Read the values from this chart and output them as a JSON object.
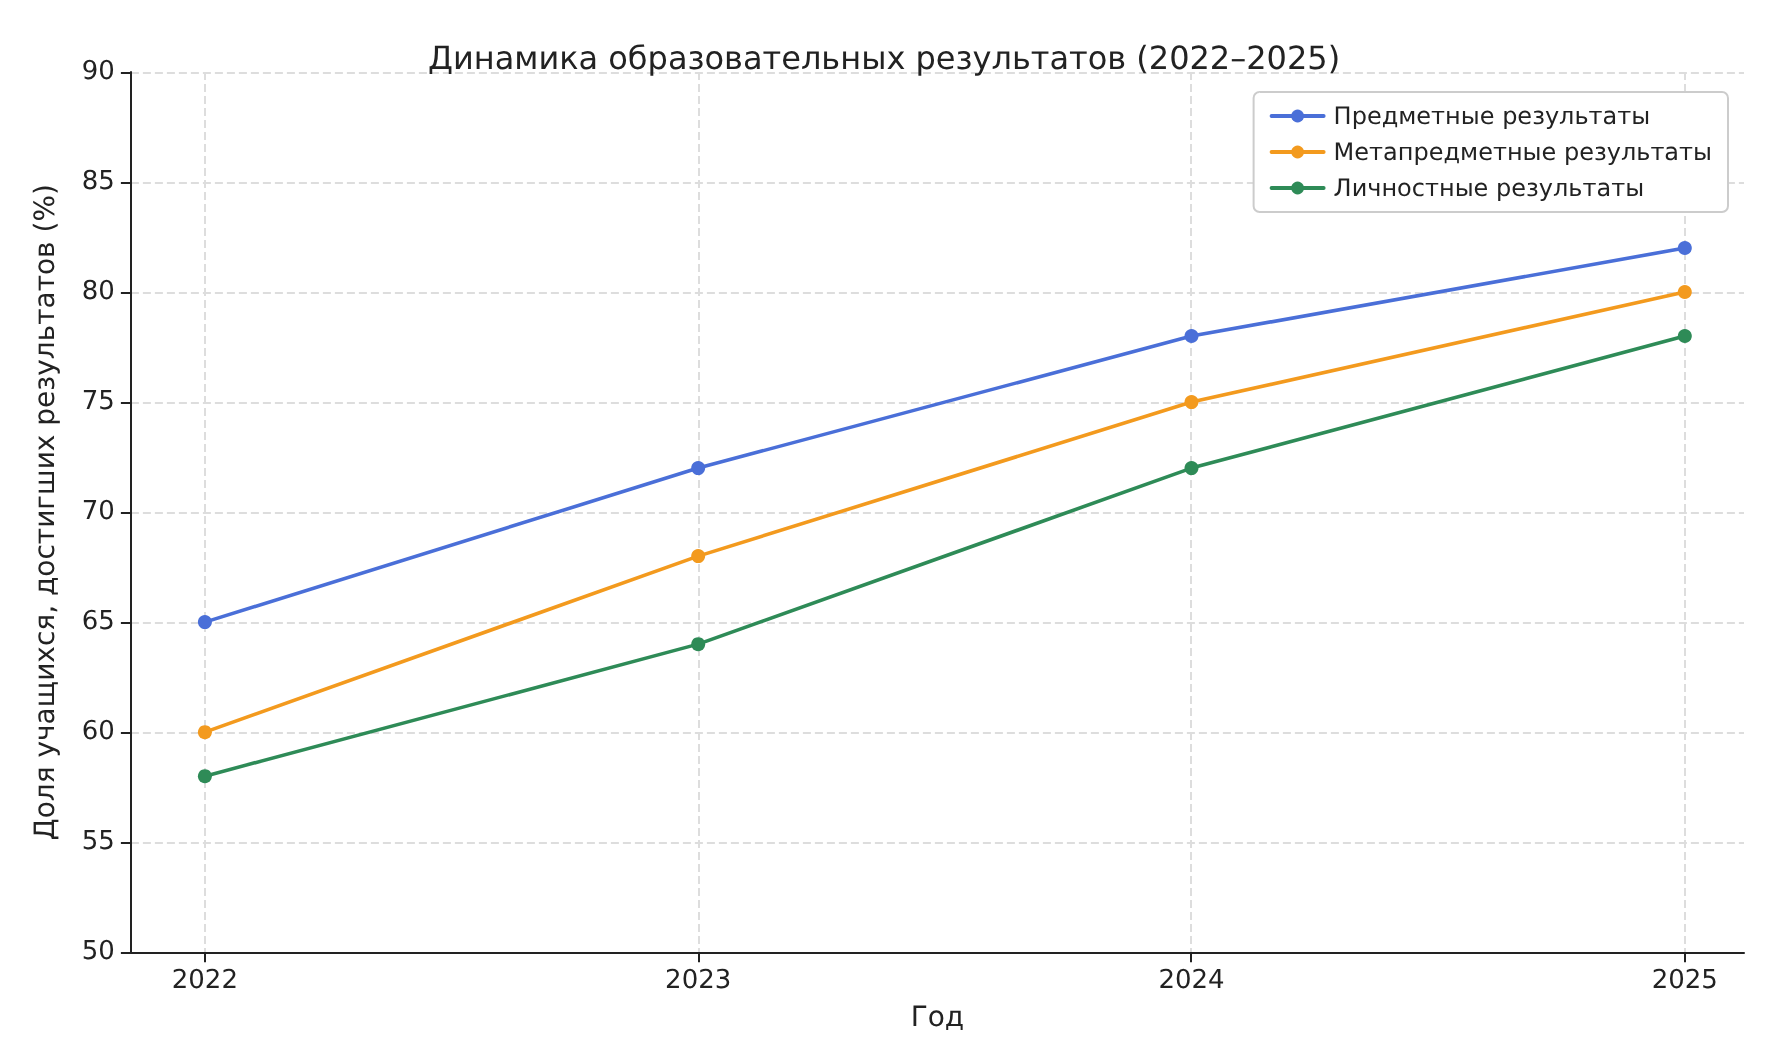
{
  "chart_data": {
    "type": "line",
    "title": "Динамика образовательных результатов (2022–2025)",
    "xlabel": "Год",
    "ylabel": "Доля учащихся, достигших результатов (%)",
    "x": [
      2022,
      2023,
      2024,
      2025
    ],
    "series": [
      {
        "name": "Предметные результаты",
        "color": "#4a6fd8",
        "values": [
          65,
          72,
          78,
          82
        ]
      },
      {
        "name": "Метапредметные результаты",
        "color": "#f39a1e",
        "values": [
          60,
          68,
          75,
          80
        ]
      },
      {
        "name": "Личностные результаты",
        "color": "#2e8b57",
        "values": [
          58,
          64,
          72,
          78
        ]
      }
    ],
    "xlim": [
      2021.85,
      2025.12
    ],
    "xticks": [
      2022,
      2023,
      2024,
      2025
    ],
    "ylim": [
      50,
      90
    ],
    "yticks": [
      50,
      55,
      60,
      65,
      70,
      75,
      80,
      85,
      90
    ],
    "grid": true,
    "legend": "top right",
    "marker": "circle",
    "line_style": "solid"
  }
}
